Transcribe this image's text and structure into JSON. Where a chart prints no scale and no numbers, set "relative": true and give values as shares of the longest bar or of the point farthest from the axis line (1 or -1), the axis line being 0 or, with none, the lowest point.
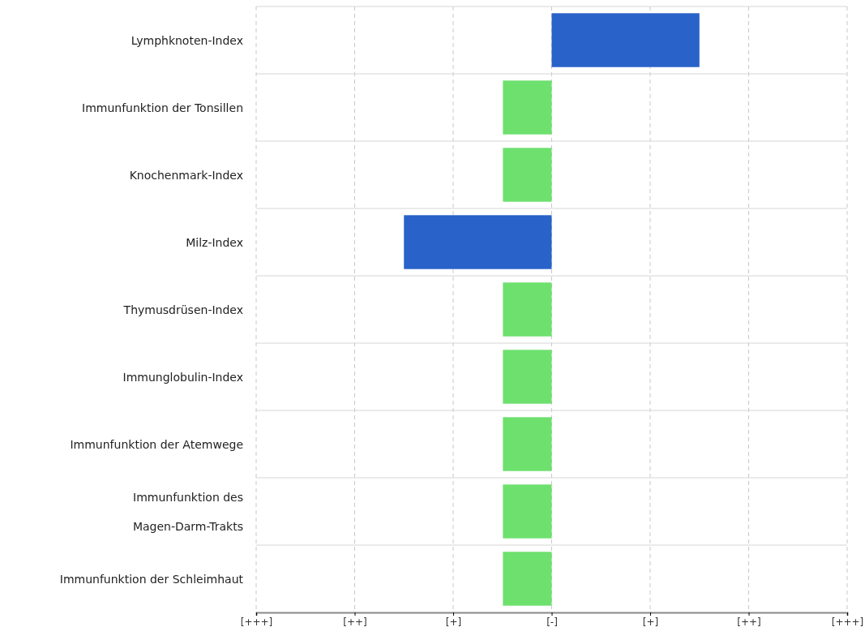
{
  "chart_data": {
    "type": "bar",
    "orientation": "horizontal",
    "relative": true,
    "categories": [
      "Lymphknoten-Index",
      "Immunfunktion der Tonsillen",
      "Knochenmark-Index",
      "Milz-Index",
      "Thymusdrüsen-Index",
      "Immunglobulin-Index",
      "Immunfunktion der Atemwege",
      "Immunfunktion des Magen-Darm-Trakts",
      "Immunfunktion der Schleimhaut"
    ],
    "values": [
      1,
      -0.33,
      -0.33,
      -1,
      -0.33,
      -0.33,
      -0.33,
      -0.33,
      -0.33
    ],
    "colors": [
      "#2962c8",
      "#6ee06e",
      "#6ee06e",
      "#2962c8",
      "#6ee06e",
      "#6ee06e",
      "#6ee06e",
      "#6ee06e",
      "#6ee06e"
    ],
    "annotations": [
      "[+++]",
      "[++]",
      "[+]",
      "[-]",
      "[+]",
      "[++]",
      "[+++]"
    ],
    "grid": true
  }
}
